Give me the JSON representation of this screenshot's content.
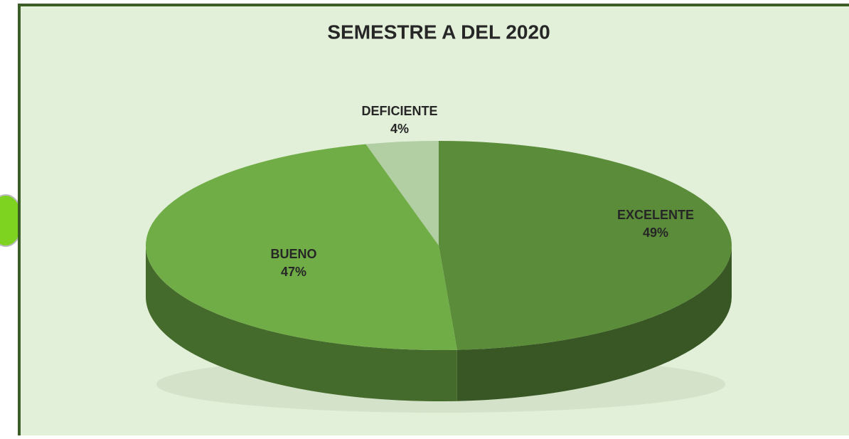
{
  "chart_data": {
    "type": "pie",
    "title": "SEMESTRE A DEL 2020",
    "categories": [
      "EXCELENTE",
      "BUENO",
      "DEFICIENTE"
    ],
    "values": [
      49,
      47,
      4
    ],
    "value_labels": [
      "49%",
      "47%",
      "4%"
    ],
    "colors": [
      "#5b8c3a",
      "#70ad47",
      "#b2cea3"
    ]
  }
}
